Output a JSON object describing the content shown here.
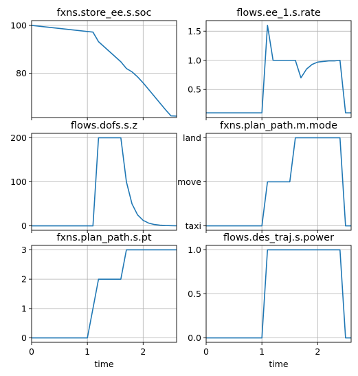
{
  "chart_data": [
    {
      "type": "line",
      "title": "fxns.store_ee.s.soc",
      "xlabel": "",
      "ylabel": "",
      "xlim": [
        0,
        2.6
      ],
      "ylim": [
        61.5,
        102
      ],
      "grid": true,
      "xticks": [
        0,
        1,
        2
      ],
      "xtick_labels": [
        "",
        "",
        ""
      ],
      "yticks": [
        80,
        100
      ],
      "ytick_labels": [
        "80",
        "100"
      ],
      "series": [
        {
          "color": "#1f77b4",
          "x": [
            0,
            1.1,
            1.2,
            1.6,
            1.7,
            1.8,
            1.9,
            2.0,
            2.1,
            2.2,
            2.3,
            2.4,
            2.5,
            2.6
          ],
          "y": [
            100,
            97.2,
            93.2,
            84.8,
            82.0,
            80.6,
            78.5,
            76.0,
            73.2,
            70.4,
            67.6,
            64.8,
            62.2,
            62.1
          ]
        }
      ]
    },
    {
      "type": "line",
      "title": "flows.ee_1.s.rate",
      "xlabel": "",
      "ylabel": "",
      "xlim": [
        0,
        2.6
      ],
      "ylim": [
        0.02,
        1.68
      ],
      "grid": true,
      "xticks": [
        0,
        1,
        2
      ],
      "xtick_labels": [
        "",
        "",
        ""
      ],
      "yticks": [
        0.5,
        1.0,
        1.5
      ],
      "ytick_labels": [
        "0.5",
        "1.0",
        "1.5"
      ],
      "series": [
        {
          "color": "#1f77b4",
          "x": [
            0,
            1.0,
            1.1,
            1.2,
            1.3,
            1.4,
            1.5,
            1.6,
            1.7,
            1.8,
            1.9,
            2.0,
            2.1,
            2.2,
            2.3,
            2.4,
            2.5,
            2.6
          ],
          "y": [
            0.1,
            0.1,
            1.6,
            1.0,
            1.0,
            1.0,
            1.0,
            1.0,
            0.7,
            0.85,
            0.93,
            0.97,
            0.98,
            0.99,
            0.99,
            1.0,
            0.1,
            0.1
          ]
        }
      ]
    },
    {
      "type": "line",
      "title": "flows.dofs.s.z",
      "xlabel": "",
      "ylabel": "",
      "xlim": [
        0,
        2.6
      ],
      "ylim": [
        -10,
        210
      ],
      "grid": true,
      "xticks": [
        0,
        1,
        2
      ],
      "xtick_labels": [
        "",
        "",
        ""
      ],
      "yticks": [
        0,
        100,
        200
      ],
      "ytick_labels": [
        "0",
        "100",
        "200"
      ],
      "series": [
        {
          "color": "#1f77b4",
          "x": [
            0,
            1.0,
            1.1,
            1.2,
            1.3,
            1.4,
            1.5,
            1.6,
            1.7,
            1.8,
            1.9,
            2.0,
            2.1,
            2.2,
            2.3,
            2.4,
            2.5,
            2.6
          ],
          "y": [
            0,
            0,
            0,
            200,
            200,
            200,
            200,
            200,
            100,
            50,
            25,
            12.5,
            6.25,
            3.1,
            1.6,
            0.8,
            0.4,
            0.2
          ]
        }
      ]
    },
    {
      "type": "line",
      "title": "fxns.plan_path.m.mode",
      "xlabel": "",
      "ylabel": "",
      "xlim": [
        0,
        2.6
      ],
      "ylim": [
        -0.1,
        2.1
      ],
      "grid": true,
      "xticks": [
        0,
        1,
        2
      ],
      "xtick_labels": [
        "",
        "",
        ""
      ],
      "yticks": [
        0,
        1,
        2
      ],
      "ytick_labels": [
        "taxi",
        "move",
        "land"
      ],
      "series": [
        {
          "color": "#1f77b4",
          "x": [
            0,
            1.0,
            1.1,
            1.2,
            1.3,
            1.4,
            1.5,
            1.6,
            1.7,
            1.8,
            1.9,
            2.0,
            2.1,
            2.2,
            2.3,
            2.4,
            2.5,
            2.6
          ],
          "y": [
            0,
            0,
            1,
            1,
            1,
            1,
            1,
            2,
            2,
            2,
            2,
            2,
            2,
            2,
            2,
            2,
            0,
            0
          ]
        }
      ]
    },
    {
      "type": "line",
      "title": "fxns.plan_path.s.pt",
      "xlabel": "time",
      "ylabel": "",
      "xlim": [
        0,
        2.6
      ],
      "ylim": [
        -0.15,
        3.15
      ],
      "grid": true,
      "xticks": [
        0,
        1,
        2
      ],
      "xtick_labels": [
        "0",
        "1",
        "2"
      ],
      "yticks": [
        0,
        1,
        2,
        3
      ],
      "ytick_labels": [
        "0",
        "1",
        "2",
        "3"
      ],
      "series": [
        {
          "color": "#1f77b4",
          "x": [
            0,
            1.0,
            1.2,
            1.3,
            1.4,
            1.5,
            1.6,
            1.7,
            1.8,
            1.9,
            2.0,
            2.1,
            2.2,
            2.3,
            2.4,
            2.5,
            2.6
          ],
          "y": [
            0,
            0,
            2,
            2,
            2,
            2,
            2,
            3,
            3,
            3,
            3,
            3,
            3,
            3,
            3,
            3,
            3
          ]
        }
      ]
    },
    {
      "type": "line",
      "title": "flows.des_traj.s.power",
      "xlabel": "time",
      "ylabel": "",
      "xlim": [
        0,
        2.6
      ],
      "ylim": [
        -0.05,
        1.05
      ],
      "grid": true,
      "xticks": [
        0,
        1,
        2
      ],
      "xtick_labels": [
        "0",
        "1",
        "2"
      ],
      "yticks": [
        0,
        0.5,
        1
      ],
      "ytick_labels": [
        "0.0",
        "0.5",
        "1.0"
      ],
      "series": [
        {
          "color": "#1f77b4",
          "x": [
            0,
            1.0,
            1.1,
            1.2,
            1.3,
            1.4,
            1.5,
            1.6,
            1.7,
            1.8,
            1.9,
            2.0,
            2.1,
            2.2,
            2.3,
            2.4,
            2.5,
            2.6
          ],
          "y": [
            0,
            0,
            1,
            1,
            1,
            1,
            1,
            1,
            1,
            1,
            1,
            1,
            1,
            1,
            1,
            1,
            0,
            0
          ]
        }
      ]
    }
  ]
}
